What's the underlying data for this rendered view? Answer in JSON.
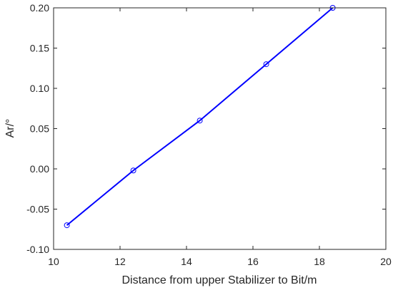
{
  "chart_data": {
    "type": "line",
    "title": "",
    "xlabel": "Distance from upper Stabilizer to Bit/m",
    "ylabel": "Ar/°",
    "xlim": [
      10,
      20
    ],
    "ylim": [
      -0.1,
      0.2
    ],
    "xticks": [
      "10",
      "12",
      "14",
      "16",
      "18",
      "20"
    ],
    "yticks": [
      "-0.10",
      "-0.05",
      "0.00",
      "0.05",
      "0.10",
      "0.15",
      "0.20"
    ],
    "series": [
      {
        "x": [
          10.4,
          12.4,
          14.4,
          16.4,
          18.4
        ],
        "y": [
          -0.07,
          -0.002,
          0.06,
          0.13,
          0.2
        ],
        "marker": "circle"
      }
    ],
    "colors": {
      "line": "#0000ff",
      "axis": "#262626",
      "background": "#ffffff"
    },
    "grid": false,
    "box": true
  }
}
